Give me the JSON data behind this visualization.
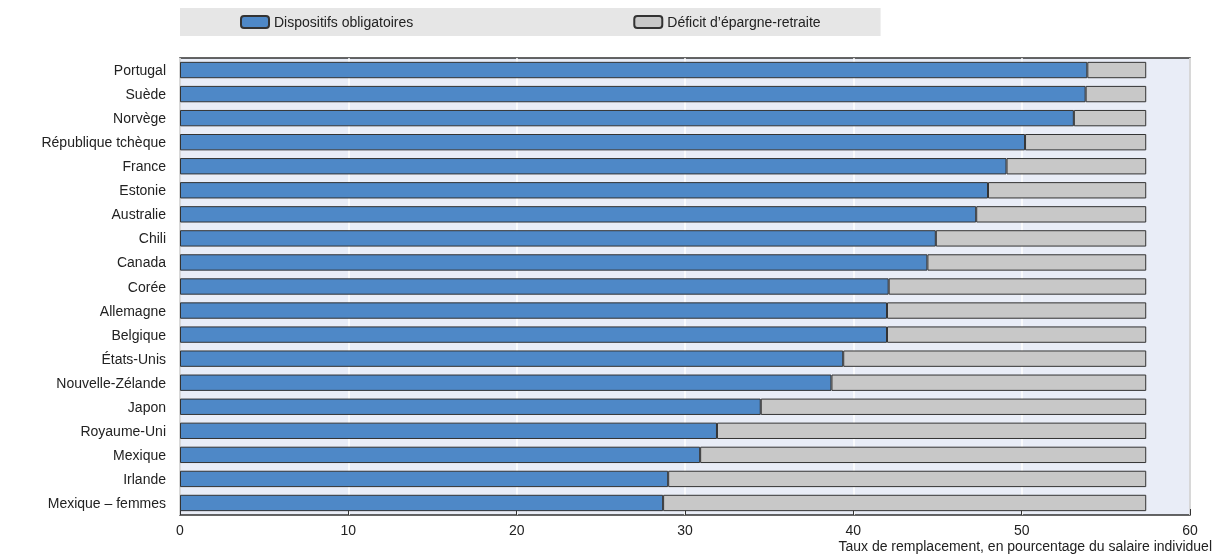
{
  "chart_data": {
    "type": "bar",
    "orientation": "horizontal",
    "stacked": true,
    "xlabel": "Taux de remplacement, en pourcentage du salaire individuel",
    "categories": [
      "Portugal",
      "Suède",
      "Norvège",
      "République tchèque",
      "France",
      "Estonie",
      "Australie",
      "Chili",
      "Canada",
      "Corée",
      "Allemagne",
      "Belgique",
      "États-Unis",
      "Nouvelle-Zélande",
      "Japon",
      "Royaume-Uni",
      "Mexique",
      "Irlande",
      "Mexique – femmes"
    ],
    "series": [
      {
        "name": "Dispositifs obligatoires",
        "color": "#4e88c7",
        "values": [
          53.9,
          53.8,
          53.1,
          50.2,
          49.1,
          48.0,
          47.3,
          44.9,
          44.4,
          42.1,
          42.0,
          42.0,
          39.4,
          38.7,
          34.5,
          31.9,
          30.9,
          29.0,
          28.7
        ]
      },
      {
        "name": "Déficit d’épargne-retraite",
        "color": "#c8c8c8",
        "values": [
          3.5,
          3.6,
          4.3,
          7.2,
          8.3,
          9.4,
          10.1,
          12.5,
          13.0,
          15.3,
          15.4,
          15.4,
          18.0,
          18.7,
          22.9,
          25.5,
          26.5,
          28.4,
          28.7
        ]
      }
    ],
    "xlim": [
      0,
      60
    ],
    "xticks": [
      0,
      10,
      20,
      30,
      40,
      50,
      60
    ],
    "grid": "x",
    "legend": "top"
  }
}
